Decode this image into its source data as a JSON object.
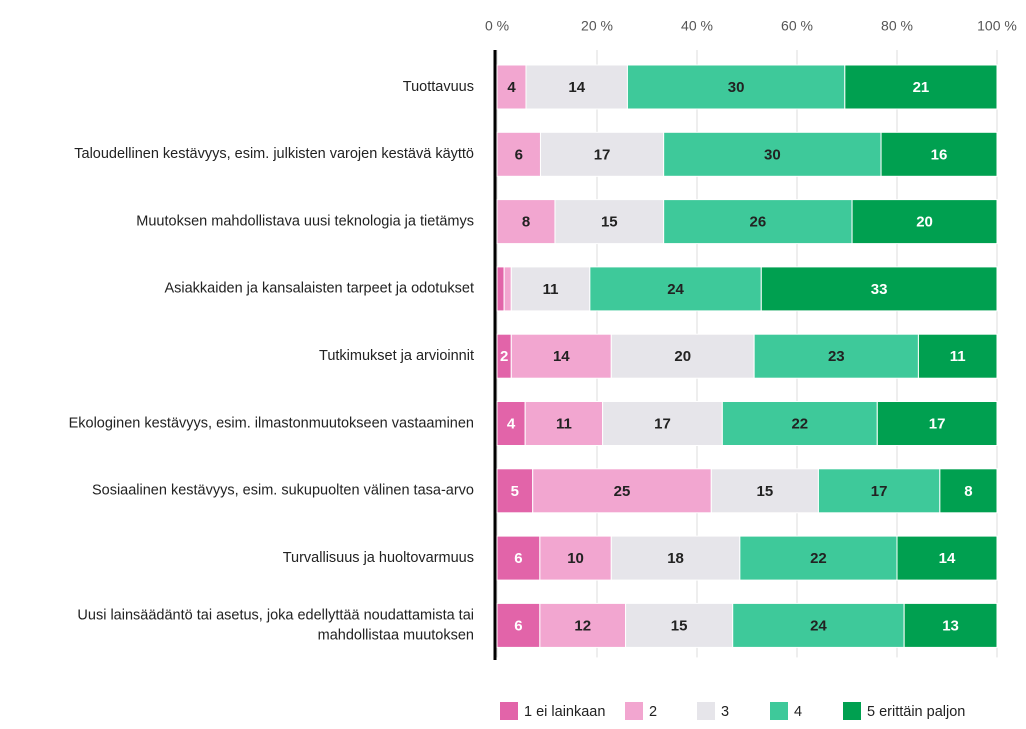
{
  "chart_data": {
    "type": "bar",
    "orientation": "horizontal",
    "stacking": "percent",
    "categories": [
      "Tuottavuus",
      "Taloudellinen kestävyys, esim. julkisten varojen kestävä käyttö",
      "Muutoksen mahdollistava uusi teknologia ja tietämys",
      "Asiakkaiden ja kansalaisten tarpeet ja odotukset",
      "Tutkimukset ja arvioinnit",
      "Ekologinen kestävyys, esim. ilmastonmuutokseen vastaaminen",
      "Sosiaalinen kestävyys, esim. sukupuolten välinen tasa-arvo",
      "Turvallisuus ja huoltovarmuus",
      "Uusi lainsäädäntö tai asetus, joka edellyttää noudattamista tai\nmahdollistaa muutoksen"
    ],
    "series": [
      {
        "name": "1 ei lainkaan",
        "color": "#e264a9",
        "label_color": "#ffffff",
        "values": [
          0,
          0,
          0,
          1,
          2,
          4,
          5,
          6,
          6
        ]
      },
      {
        "name": "2",
        "color": "#f2a6d0",
        "label_color": "#222222",
        "values": [
          4,
          6,
          8,
          1,
          14,
          11,
          25,
          10,
          12
        ]
      },
      {
        "name": "3",
        "color": "#e6e5ea",
        "label_color": "#222222",
        "values": [
          14,
          17,
          15,
          11,
          20,
          17,
          15,
          18,
          15
        ]
      },
      {
        "name": "4",
        "color": "#3ec99a",
        "label_color": "#222222",
        "values": [
          30,
          30,
          26,
          24,
          23,
          22,
          17,
          22,
          24
        ]
      },
      {
        "name": "5 erittäin paljon",
        "color": "#00a050",
        "label_color": "#ffffff",
        "values": [
          21,
          16,
          20,
          33,
          11,
          17,
          8,
          14,
          13
        ]
      }
    ],
    "xlim": [
      0,
      100
    ],
    "xticks": [
      {
        "value": 0,
        "label": "0 %"
      },
      {
        "value": 20,
        "label": "20 %"
      },
      {
        "value": 40,
        "label": "40 %"
      },
      {
        "value": 60,
        "label": "60 %"
      },
      {
        "value": 80,
        "label": "80 %"
      },
      {
        "value": 100,
        "label": "100 %"
      }
    ],
    "grid": true,
    "legend": "bottom"
  }
}
